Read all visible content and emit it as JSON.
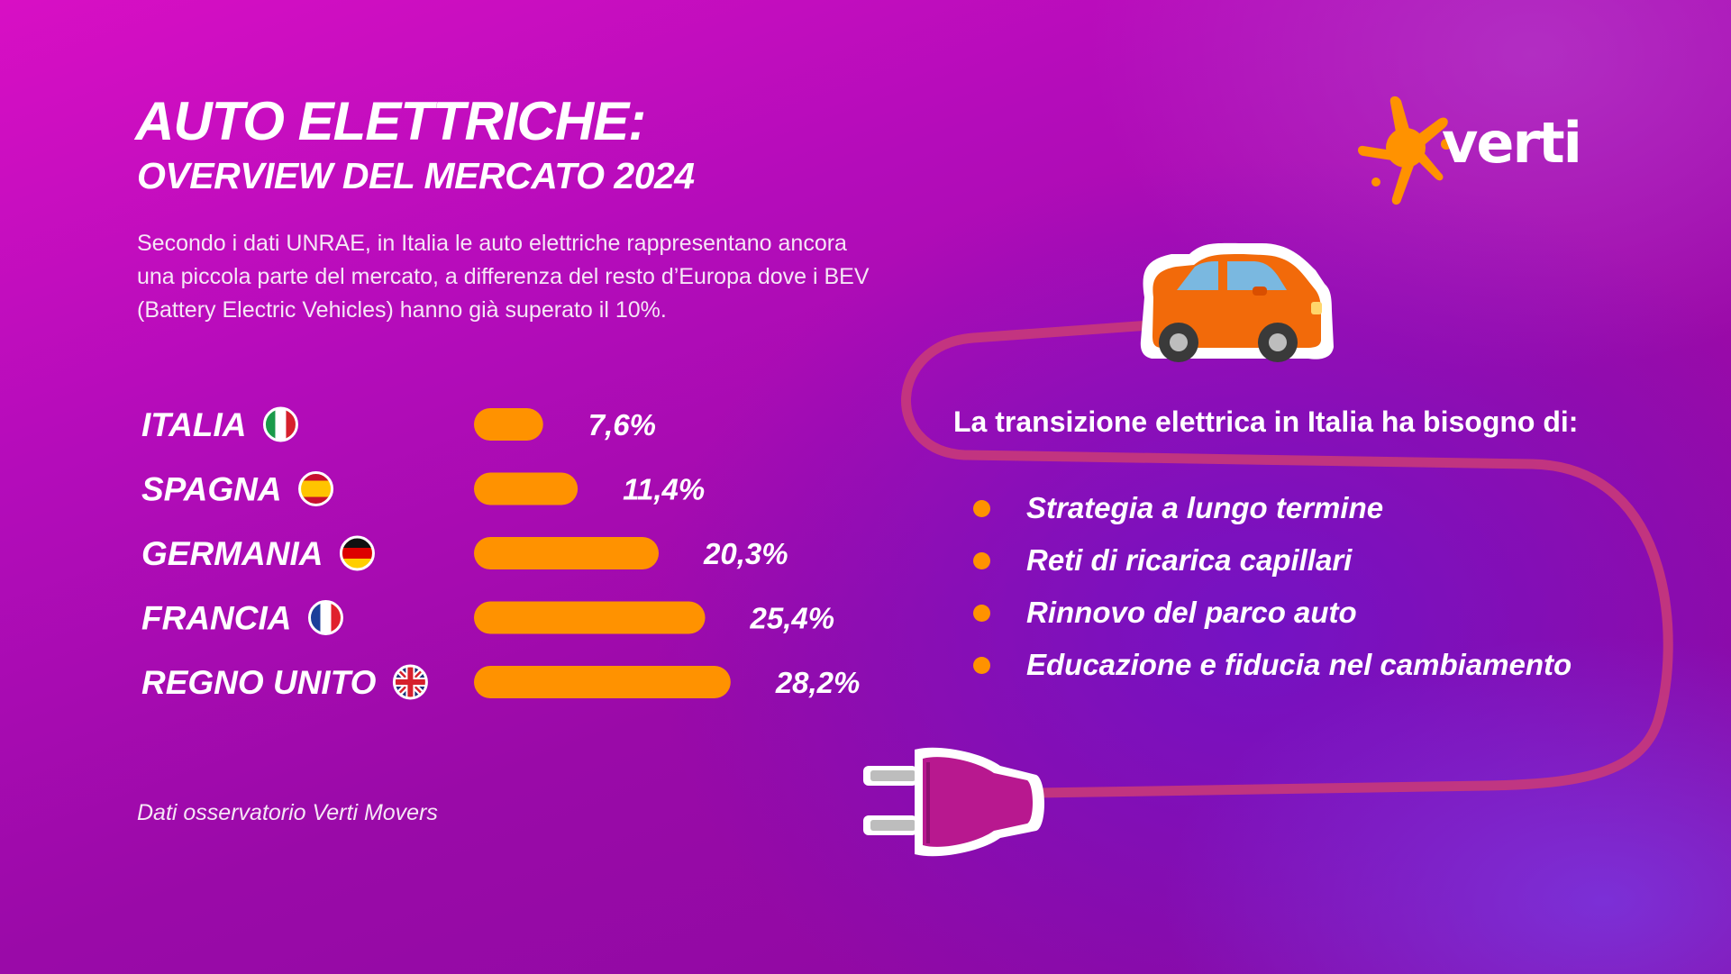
{
  "header": {
    "title": "AUTO ELETTRICHE:",
    "subtitle": "OVERVIEW DEL MERCATO 2024",
    "intro": "Secondo i dati UNRAE, in Italia le auto elettriche rappresentano ancora una piccola parte del mercato, a differenza del resto d’Europa dove i BEV (Battery Electric Vehicles) hanno già superato il 10%."
  },
  "source_note": "Dati osservatorio Verti Movers",
  "logo": {
    "text": "verti"
  },
  "colors": {
    "bar": "#ff9200",
    "accent": "#ff9200",
    "cable": "#c8387a",
    "car": "#f26a0a"
  },
  "chart_data": {
    "type": "bar",
    "orientation": "horizontal",
    "categories": [
      "ITALIA",
      "SPAGNA",
      "GERMANIA",
      "FRANCIA",
      "REGNO UNITO"
    ],
    "values": [
      7.6,
      11.4,
      20.3,
      25.4,
      28.2
    ],
    "value_labels": [
      "7,6%",
      "11,4%",
      "20,3%",
      "25,4%",
      "28,2%"
    ],
    "flags": [
      "it-flag-icon",
      "es-flag-icon",
      "de-flag-icon",
      "fr-flag-icon",
      "uk-flag-icon"
    ],
    "unit": "%",
    "grid": false
  },
  "needs": {
    "heading": "La transizione elettrica in Italia ha bisogno di:",
    "items": [
      "Strategia a lungo termine",
      "Reti di ricarica capillari",
      "Rinnovo del parco auto",
      "Educazione e fiducia nel cambiamento"
    ]
  },
  "icons": {
    "car": "car-icon",
    "plug": "plug-icon",
    "cable": "cable-line"
  }
}
